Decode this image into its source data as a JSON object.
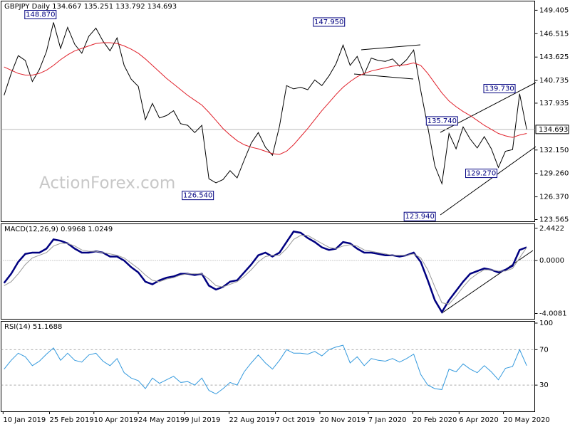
{
  "chart_data": [
    {
      "type": "line",
      "title": "GBPJPY Daily  134.667 135.251 133.792 134.693",
      "watermark": "ActionForex.com",
      "x": [
        "2019-01-11",
        "2019-01-18",
        "2019-01-25",
        "2019-02-01",
        "2019-02-08",
        "2019-02-15",
        "2019-02-22",
        "2019-03-01",
        "2019-03-08",
        "2019-03-15",
        "2019-03-22",
        "2019-03-29",
        "2019-04-05",
        "2019-04-12",
        "2019-04-19",
        "2019-04-26",
        "2019-05-03",
        "2019-05-10",
        "2019-05-17",
        "2019-05-24",
        "2019-05-31",
        "2019-06-07",
        "2019-06-14",
        "2019-06-21",
        "2019-06-28",
        "2019-07-05",
        "2019-07-12",
        "2019-07-19",
        "2019-07-26",
        "2019-08-02",
        "2019-08-09",
        "2019-08-16",
        "2019-08-23",
        "2019-08-30",
        "2019-09-06",
        "2019-09-13",
        "2019-09-20",
        "2019-09-27",
        "2019-10-04",
        "2019-10-11",
        "2019-10-18",
        "2019-10-25",
        "2019-11-01",
        "2019-11-08",
        "2019-11-15",
        "2019-11-22",
        "2019-11-29",
        "2019-12-06",
        "2019-12-13",
        "2019-12-20",
        "2019-12-27",
        "2020-01-03",
        "2020-01-10",
        "2020-01-17",
        "2020-01-24",
        "2020-01-31",
        "2020-02-07",
        "2020-02-14",
        "2020-02-21",
        "2020-02-28",
        "2020-03-06",
        "2020-03-13",
        "2020-03-20",
        "2020-03-27",
        "2020-04-03",
        "2020-04-10",
        "2020-04-17",
        "2020-04-24",
        "2020-05-01",
        "2020-05-08",
        "2020-05-15",
        "2020-05-22",
        "2020-05-29",
        "2020-06-05",
        "2020-06-12"
      ],
      "xlim": [
        "2019-01-08",
        "2020-06-20"
      ],
      "xticks": [
        {
          "value": "2019-01-10",
          "label": "10 Jan 2019"
        },
        {
          "value": "2019-02-25",
          "label": "25 Feb 2019"
        },
        {
          "value": "2019-04-10",
          "label": "10 Apr 2019"
        },
        {
          "value": "2019-05-24",
          "label": "24 May 2019"
        },
        {
          "value": "2019-07-09",
          "label": "9 Jul 2019"
        },
        {
          "value": "2019-08-22",
          "label": "22 Aug 2019"
        },
        {
          "value": "2019-10-07",
          "label": "7 Oct 2019"
        },
        {
          "value": "2019-11-20",
          "label": "20 Nov 2019"
        },
        {
          "value": "2020-01-07",
          "label": "7 Jan 2020"
        },
        {
          "value": "2020-02-20",
          "label": "20 Feb 2020"
        },
        {
          "value": "2020-04-06",
          "label": "6 Apr 2020"
        },
        {
          "value": "2020-05-20",
          "label": "20 May 2020"
        }
      ],
      "series": [
        {
          "color": "#000000",
          "values": [
            138.9,
            141.6,
            143.8,
            143.2,
            140.6,
            142.1,
            144.3,
            147.9,
            144.7,
            147.3,
            145.2,
            144.1,
            146.2,
            147.2,
            145.6,
            144.4,
            146.0,
            142.6,
            140.9,
            140.0,
            135.9,
            137.9,
            136.1,
            136.4,
            137.0,
            135.4,
            135.2,
            134.3,
            135.2,
            128.6,
            128.1,
            128.5,
            129.6,
            128.7,
            130.9,
            133.0,
            134.3,
            132.5,
            131.5,
            135.1,
            140.1,
            139.7,
            139.9,
            139.6,
            140.8,
            140.1,
            141.3,
            142.8,
            145.1,
            142.6,
            143.7,
            141.5,
            143.5,
            143.2,
            143.1,
            143.4,
            142.5,
            143.3,
            144.5,
            139.5,
            135.0,
            130.2,
            128.0,
            134.2,
            132.3,
            135.0,
            133.5,
            132.4,
            133.8,
            132.3,
            130.0,
            132.0,
            132.2,
            139.1,
            134.7
          ]
        },
        {
          "color": "#e0202a",
          "values": [
            142.4,
            142.0,
            141.6,
            141.4,
            141.4,
            141.6,
            142.0,
            142.6,
            143.3,
            143.9,
            144.4,
            144.7,
            145.0,
            145.3,
            145.4,
            145.4,
            145.3,
            145.0,
            144.6,
            144.1,
            143.4,
            142.6,
            141.8,
            141.0,
            140.3,
            139.6,
            138.9,
            138.3,
            137.7,
            136.8,
            135.8,
            134.8,
            134.0,
            133.3,
            132.8,
            132.5,
            132.3,
            132.0,
            131.7,
            131.6,
            132.0,
            132.8,
            133.8,
            134.8,
            135.9,
            137.0,
            138.0,
            139.0,
            139.9,
            140.6,
            141.2,
            141.6,
            141.9,
            142.1,
            142.3,
            142.5,
            142.6,
            142.7,
            142.9,
            142.6,
            141.6,
            140.4,
            139.2,
            138.2,
            137.5,
            136.9,
            136.4,
            135.8,
            135.2,
            134.7,
            134.2,
            133.9,
            133.7,
            134.0,
            134.2
          ]
        }
      ],
      "ylim": [
        123.3,
        150.54
      ],
      "yticks": [
        149.405,
        146.515,
        143.625,
        140.735,
        137.935,
        {
          "value": 132.15,
          "label": "132.150"
        },
        {
          "value": 129.26,
          "label": "129.260"
        },
        {
          "value": 126.37,
          "label": "126.370"
        },
        123.565
      ],
      "last_price": {
        "value": 134.693,
        "label": "134.693"
      },
      "annotations": [
        {
          "x": "2019-03-05",
          "value": 148.87,
          "label": "148.870"
        },
        {
          "x": "2019-12-16",
          "value": 147.95,
          "label": "147.950"
        },
        {
          "x": "2020-06-02",
          "value": 139.73,
          "label": "139.730"
        },
        {
          "x": "2020-04-06",
          "value": 135.74,
          "label": "135.740"
        },
        {
          "x": "2020-05-15",
          "value": 129.27,
          "label": "129.270"
        },
        {
          "x": "2019-08-08",
          "value": 126.54,
          "label": "126.540"
        },
        {
          "x": "2020-03-15",
          "value": 123.94,
          "label": "123.940"
        }
      ]
    },
    {
      "type": "line",
      "title": "MACD(12,26,9) 0.9968 1.0249",
      "series": [
        {
          "color": "#000080",
          "values": [
            -1.7,
            -1.0,
            -0.1,
            0.5,
            0.6,
            0.6,
            0.9,
            1.6,
            1.5,
            1.3,
            0.9,
            0.6,
            0.6,
            0.7,
            0.6,
            0.3,
            0.3,
            0.0,
            -0.5,
            -0.9,
            -1.6,
            -1.8,
            -1.5,
            -1.3,
            -1.2,
            -1.0,
            -1.0,
            -1.1,
            -1.0,
            -1.9,
            -2.2,
            -2.0,
            -1.6,
            -1.5,
            -0.9,
            -0.3,
            0.4,
            0.6,
            0.3,
            0.6,
            1.4,
            2.2,
            2.1,
            1.7,
            1.4,
            1.0,
            0.8,
            0.9,
            1.4,
            1.3,
            0.9,
            0.6,
            0.6,
            0.5,
            0.4,
            0.4,
            0.3,
            0.4,
            0.6,
            -0.1,
            -1.5,
            -3.0,
            -3.9,
            -3.0,
            -2.3,
            -1.6,
            -1.0,
            -0.8,
            -0.6,
            -0.7,
            -0.9,
            -0.7,
            -0.4,
            0.8,
            1.0
          ]
        },
        {
          "color": "#999999",
          "values": [
            -1.9,
            -1.6,
            -1.0,
            -0.3,
            0.2,
            0.4,
            0.6,
            1.1,
            1.3,
            1.3,
            1.1,
            0.8,
            0.7,
            0.7,
            0.6,
            0.5,
            0.4,
            0.2,
            -0.2,
            -0.6,
            -1.1,
            -1.5,
            -1.6,
            -1.4,
            -1.3,
            -1.1,
            -1.0,
            -1.0,
            -1.0,
            -1.4,
            -1.9,
            -2.0,
            -1.8,
            -1.6,
            -1.2,
            -0.7,
            -0.1,
            0.3,
            0.4,
            0.4,
            0.9,
            1.6,
            1.9,
            1.9,
            1.6,
            1.3,
            1.0,
            0.9,
            1.1,
            1.2,
            1.1,
            0.8,
            0.7,
            0.6,
            0.5,
            0.4,
            0.4,
            0.4,
            0.5,
            0.2,
            -0.7,
            -2.0,
            -3.2,
            -3.3,
            -2.7,
            -2.0,
            -1.4,
            -1.0,
            -0.7,
            -0.7,
            -0.8,
            -0.8,
            -0.6,
            0.2,
            1.0
          ]
        }
      ],
      "ylim": [
        -4.44,
        2.78
      ],
      "yticks": [
        2.4422,
        {
          "value": 0,
          "label": "0.0000"
        },
        -4.0081
      ]
    },
    {
      "type": "line",
      "title": "RSI(14) 51.1688",
      "series": [
        {
          "color": "#3399dd",
          "values": [
            48,
            58,
            66,
            62,
            52,
            57,
            65,
            72,
            58,
            66,
            58,
            56,
            64,
            66,
            57,
            52,
            60,
            44,
            38,
            35,
            26,
            38,
            32,
            36,
            40,
            33,
            34,
            30,
            38,
            24,
            20,
            26,
            33,
            30,
            45,
            55,
            64,
            55,
            48,
            58,
            70,
            66,
            66,
            65,
            68,
            63,
            70,
            73,
            75,
            55,
            62,
            52,
            60,
            58,
            57,
            60,
            56,
            60,
            65,
            42,
            30,
            26,
            25,
            48,
            45,
            54,
            48,
            44,
            52,
            45,
            36,
            49,
            51,
            70,
            52
          ]
        }
      ],
      "ylim": [
        0,
        102
      ],
      "yticks": [
        100,
        70,
        30
      ],
      "levels": [
        70,
        30
      ]
    }
  ]
}
